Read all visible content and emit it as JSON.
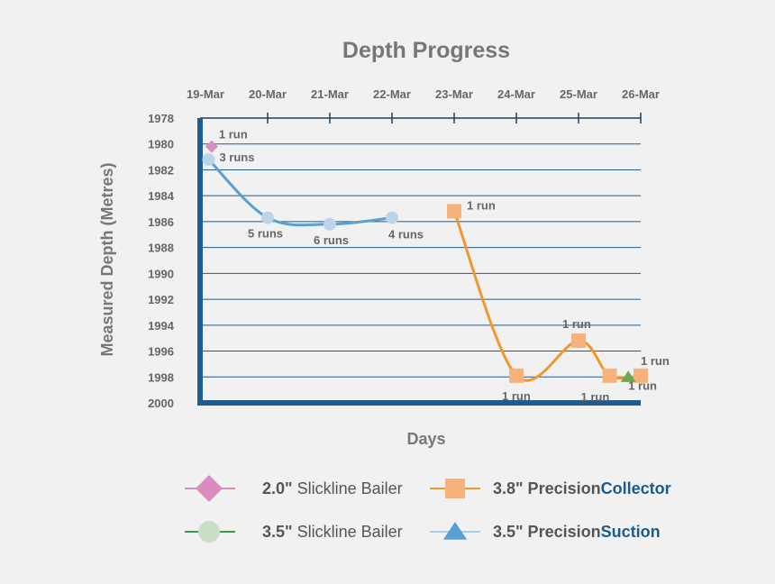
{
  "chart_data": {
    "type": "line",
    "title": "Depth Progress",
    "xlabel": "Days",
    "ylabel": "Measured Depth (Metres)",
    "x_categories": [
      "19-Mar",
      "20-Mar",
      "21-Mar",
      "22-Mar",
      "23-Mar",
      "24-Mar",
      "25-Mar",
      "26-Mar"
    ],
    "y_ticks": [
      1978,
      1980,
      1982,
      1984,
      1986,
      1988,
      1990,
      1992,
      1994,
      1996,
      1998,
      2000
    ],
    "ylim": [
      1978,
      2000
    ],
    "y_inverted": true,
    "grid": true,
    "legend_position": "bottom",
    "series": [
      {
        "name": "2.0\" Slickline Bailer",
        "legend_parts": [
          "2.0\"",
          " Slickline Bailer"
        ],
        "color": "#d98cbf",
        "marker": "diamond",
        "points": [
          {
            "x": 0.1,
            "y": 1980.2,
            "label": "1 run"
          }
        ]
      },
      {
        "name": "3.5\" Slickline Bailer",
        "legend_parts": [
          "3.5\"",
          " Slickline Bailer"
        ],
        "color": "#bcd4ea",
        "line_color": "#5a9fd4",
        "legend_color": "#c8dfc4",
        "legend_line_color": "#3a9a48",
        "marker": "circle",
        "points": [
          {
            "x": 0.05,
            "y": 1981.2,
            "label": "3 runs"
          },
          {
            "x": 1.0,
            "y": 1985.7,
            "label": "5 runs"
          },
          {
            "x": 2.0,
            "y": 1986.2,
            "label": "6 runs"
          },
          {
            "x": 3.0,
            "y": 1985.7,
            "label": "4 runs"
          }
        ]
      },
      {
        "name": "3.8\" PrecisionCollector",
        "legend_parts": [
          "3.8\" Precision",
          "Collector"
        ],
        "color": "#f6b27c",
        "line_color": "#f2962e",
        "marker": "square",
        "points": [
          {
            "x": 4.0,
            "y": 1985.2,
            "label": "1 run"
          },
          {
            "x": 5.0,
            "y": 1997.9,
            "label": "1 run"
          },
          {
            "x": 6.0,
            "y": 1995.2,
            "label": "1 run"
          },
          {
            "x": 6.5,
            "y": 1997.9,
            "label": "1 run"
          },
          {
            "x": 7.0,
            "y": 1997.9,
            "label": "1 run"
          }
        ]
      },
      {
        "name": "3.5\" PrecisionSuction",
        "legend_parts": [
          "3.5\" Precision",
          "Suction"
        ],
        "color": "#6ba84f",
        "legend_color": "#5a9fd4",
        "legend_line_color": "#a9cdeb",
        "marker": "triangle",
        "points": [
          {
            "x": 6.8,
            "y": 1998.0,
            "label": "1 run"
          }
        ]
      }
    ]
  }
}
